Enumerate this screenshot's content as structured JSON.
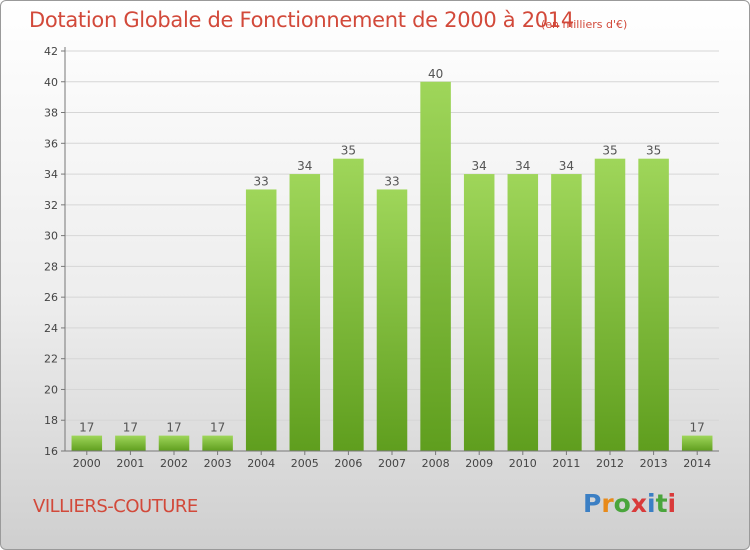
{
  "chart_data": {
    "type": "bar",
    "title": "Dotation Globale de Fonctionnement de 2000 à 2014",
    "subtitle": "(en milliers d'€)",
    "categories": [
      "2000",
      "2001",
      "2002",
      "2003",
      "2004",
      "2005",
      "2006",
      "2007",
      "2008",
      "2009",
      "2010",
      "2011",
      "2012",
      "2013",
      "2014"
    ],
    "values": [
      17,
      17,
      17,
      17,
      33,
      34,
      35,
      33,
      40,
      34,
      34,
      34,
      35,
      35,
      17
    ],
    "ylim": [
      16,
      42
    ],
    "yticks": [
      16,
      18,
      20,
      22,
      24,
      26,
      28,
      30,
      32,
      34,
      36,
      38,
      40,
      42
    ],
    "grid": true,
    "bar_color": "#7cc242"
  },
  "footer": {
    "commune": "VILLIERS-COUTURE",
    "logo_letters": [
      "P",
      "r",
      "o",
      "x",
      "i",
      "t",
      "i"
    ]
  }
}
